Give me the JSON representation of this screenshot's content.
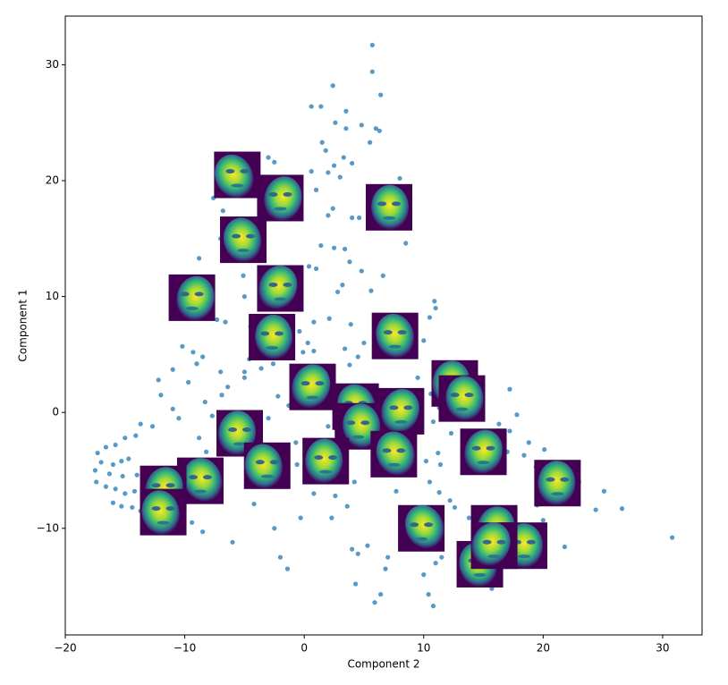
{
  "chart_data": {
    "type": "scatter",
    "x_label": "Component 2",
    "y_label": "Component 1",
    "xlim": [
      -20,
      33.3
    ],
    "ylim": [
      -19.2,
      34.2
    ],
    "xticks": [
      {
        "value": -20,
        "label": "−20"
      },
      {
        "value": -10,
        "label": "−10"
      },
      0,
      10,
      20,
      30
    ],
    "yticks": [
      {
        "value": -10,
        "label": "−10"
      },
      0,
      10,
      20,
      30
    ],
    "grid": false,
    "series": [
      {
        "color": "#1f77b4",
        "x": [
          5.7,
          5.7,
          6.4,
          2.4,
          0.6,
          1.4,
          3.5,
          2.6,
          3.5,
          4.8,
          6.0,
          6.3,
          5.5,
          1.5,
          1.8,
          3.3,
          2.5,
          4.0,
          -3.0,
          -2.5,
          -1.5,
          0.6,
          2.0,
          3.0,
          1.0,
          8.0,
          8.2,
          -0.3,
          2.0,
          2.4,
          4.0,
          4.6,
          8.5,
          -7.6,
          -6.8,
          -7.0,
          1.4,
          2.5,
          3.4,
          3.8,
          0.4,
          1.0,
          3.2,
          2.8,
          4.8,
          5.6,
          6.6,
          -8.8,
          -5.1,
          -0.5,
          -5.0,
          -2.8,
          -7.3,
          -6.6,
          0.8,
          2.1,
          3.9,
          -4.5,
          -0.4,
          10.9,
          11.0,
          10.5,
          0.3,
          5.0,
          -10.2,
          -9.3,
          -8.5,
          -4.6,
          -5.0,
          -0.1,
          0.8,
          3.4,
          4.5,
          3.8,
          9.0,
          10.0,
          -11.0,
          -9.0,
          -9.7,
          -12.2,
          -7.0,
          -5.0,
          -3.6,
          -2.6,
          -6.4,
          -8.3,
          -7.7,
          -6.9,
          -11.0,
          -10.5,
          -12.0,
          -13.7,
          -12.7,
          -14.1,
          -15.0,
          -15.8,
          -16.6,
          -17.3,
          -17.0,
          -16.0,
          -15.3,
          -14.7,
          -17.5,
          -16.3,
          -15.2,
          -14.0,
          -17.4,
          -16.6,
          -15.8,
          -15.0,
          -14.2,
          -16.0,
          -15.3,
          -14.4,
          -13.7,
          -9.4,
          -8.5,
          -7.8,
          -8.2,
          -8.8,
          -6.0,
          -2.5,
          -2.0,
          -1.4,
          -4.2,
          -2.0,
          0.8,
          -0.3,
          2.6,
          2.3,
          3.6,
          4.0,
          4.5,
          4.3,
          5.3,
          5.9,
          6.4,
          6.8,
          7.0,
          10.0,
          10.4,
          10.8,
          11.0,
          11.5,
          12.2,
          12.6,
          11.3,
          10.5,
          13.8,
          13.0,
          9.0,
          10.2,
          11.4,
          11.2,
          12.3,
          10.8,
          11.3,
          10.6,
          9.5,
          8.7,
          16.3,
          17.2,
          17.8,
          17.0,
          18.8,
          18.4,
          19.4,
          20.1,
          17.2,
          23.0,
          25.1,
          24.4,
          26.6,
          30.8,
          19.5,
          20.0,
          21.8,
          18.6,
          15.7,
          6.9,
          7.7,
          5.9,
          4.2,
          -0.7,
          1.1,
          -3.8,
          -0.6,
          2.0,
          -1.3,
          -2.2,
          -3.0
        ],
        "values": [
          31.7,
          29.4,
          27.4,
          28.2,
          26.4,
          26.4,
          26.0,
          25.0,
          24.5,
          24.8,
          24.5,
          24.3,
          23.3,
          23.3,
          22.6,
          22.0,
          21.3,
          21.5,
          22.0,
          21.6,
          20.0,
          20.8,
          20.7,
          20.3,
          19.2,
          20.2,
          19.5,
          17.8,
          17.0,
          17.6,
          16.8,
          16.8,
          14.6,
          18.5,
          17.4,
          15.0,
          14.4,
          14.2,
          14.1,
          13.0,
          12.6,
          12.4,
          11.0,
          10.4,
          12.2,
          10.5,
          11.8,
          13.3,
          11.8,
          11.0,
          10.0,
          9.0,
          8.0,
          7.8,
          7.8,
          8.1,
          7.6,
          7.4,
          7.0,
          9.6,
          9.0,
          8.2,
          6.0,
          6.0,
          5.7,
          5.2,
          4.8,
          4.6,
          3.5,
          5.2,
          5.3,
          5.5,
          4.8,
          4.1,
          5.9,
          6.2,
          3.7,
          4.2,
          2.6,
          2.8,
          3.5,
          3.0,
          3.8,
          4.2,
          2.2,
          0.9,
          -0.3,
          1.5,
          0.3,
          -0.5,
          1.5,
          -1.0,
          -1.2,
          -2.0,
          -2.2,
          -2.8,
          -3.0,
          -3.5,
          -4.3,
          -4.5,
          -4.2,
          -4.0,
          -5.0,
          -5.3,
          -5.5,
          -5.4,
          -6.0,
          -6.4,
          -6.6,
          -7.0,
          -6.8,
          -7.8,
          -8.1,
          -8.2,
          -8.5,
          -9.5,
          -10.3,
          -7.5,
          -3.4,
          -2.2,
          -11.2,
          -10.0,
          -12.5,
          -13.5,
          -7.9,
          -5.5,
          -7.0,
          -9.1,
          -7.2,
          -9.1,
          -8.1,
          -11.8,
          -12.2,
          -14.8,
          -11.5,
          -16.4,
          -15.7,
          -13.5,
          -12.5,
          -14.0,
          -15.7,
          -16.7,
          -13.0,
          -12.5,
          -7.6,
          -8.2,
          -6.9,
          -6.0,
          -9.1,
          -14.0,
          -4.5,
          -4.2,
          -4.5,
          -3.5,
          -1.8,
          -0.8,
          0.4,
          1.6,
          3.0,
          1.4,
          -1.0,
          -1.6,
          -0.2,
          -3.4,
          -2.6,
          -3.7,
          -4.7,
          -3.2,
          2.0,
          -6.0,
          -6.8,
          -8.4,
          -8.3,
          -10.8,
          -8.0,
          -9.3,
          -11.6,
          -9.8,
          -15.2,
          -3.0,
          -6.8,
          -4.3,
          -6.0,
          -2.6,
          -2.4,
          -2.4,
          -4.5,
          -1.2,
          0.6,
          1.4,
          -0.5
        ]
      }
    ],
    "thumbnails": {
      "x": [
        -5.6,
        -2.0,
        7.1,
        -5.1,
        -2.0,
        -9.4,
        -2.7,
        7.6,
        0.7,
        12.6,
        13.2,
        4.3,
        8.1,
        -5.4,
        4.5,
        7.5,
        15.0,
        1.8,
        -3.1,
        -8.7,
        -11.8,
        21.2,
        -11.8,
        9.8,
        15.9,
        18.4,
        14.7,
        15.9
      ],
      "y": [
        20.5,
        18.5,
        17.7,
        14.9,
        10.7,
        9.9,
        6.5,
        6.6,
        2.2,
        2.5,
        1.2,
        0.5,
        0.1,
        -1.8,
        -1.2,
        -3.6,
        -3.4,
        -4.2,
        -4.6,
        -5.9,
        -6.6,
        -6.1,
        -8.6,
        -10.0,
        -10.0,
        -11.5,
        -13.1,
        -11.5
      ]
    }
  }
}
